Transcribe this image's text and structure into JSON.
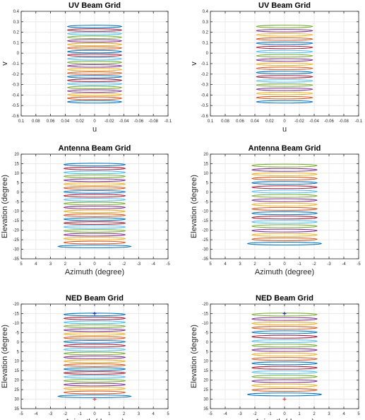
{
  "figure": {
    "colors": [
      "#0072BD",
      "#D95319",
      "#EDB120",
      "#7E2F8E",
      "#77AC30",
      "#4DBEEE",
      "#A2142F"
    ],
    "axis_color": "#262626",
    "grid_color": "#e6e6e6",
    "marker_colors": {
      "blue": "#1f1fcf",
      "red": "#e0302a"
    }
  },
  "chart_data": [
    {
      "id": "uv-left",
      "type": "line",
      "title": "UV Beam Grid",
      "xlabel": "u",
      "ylabel": "v",
      "xlim": [
        0.1,
        -0.1
      ],
      "ylim": [
        -0.6,
        0.4
      ],
      "xticks": [
        0.1,
        0.08,
        0.06,
        0.04,
        0.02,
        0,
        -0.02,
        -0.04,
        -0.06,
        -0.08,
        -0.1
      ],
      "xticklabels": [
        "0.1",
        "0.08",
        "0.06",
        "0.04",
        "0.02",
        "0",
        "-0.02",
        "-0.04",
        "-0.06",
        "-0.08",
        "-0.1"
      ],
      "yticks": [
        -0.6,
        -0.5,
        -0.4,
        -0.3,
        -0.2,
        -0.1,
        0,
        0.1,
        0.2,
        0.3,
        0.4
      ],
      "yticklabels": [
        "-0.6",
        "-0.5",
        "-0.4",
        "-0.3",
        "-0.2",
        "-0.1",
        "0",
        "0.1",
        "0.2",
        "0.3",
        "0.4"
      ],
      "grid": true,
      "ellipses": {
        "cx": 0,
        "rx": 0.037,
        "ry": 0.012,
        "count": 22,
        "cy_first": -0.465,
        "cy_last": 0.255
      },
      "markers": []
    },
    {
      "id": "uv-right",
      "type": "line",
      "title": "UV Beam Grid",
      "xlabel": "u",
      "ylabel": "v",
      "xlim": [
        0.1,
        -0.1
      ],
      "ylim": [
        -0.6,
        0.4
      ],
      "xticks": [
        0.1,
        0.08,
        0.06,
        0.04,
        0.02,
        0,
        -0.02,
        -0.04,
        -0.06,
        -0.08,
        -0.1
      ],
      "xticklabels": [
        "0.1",
        "0.08",
        "0.06",
        "0.04",
        "0.02",
        "0",
        "-0.02",
        "-0.04",
        "-0.06",
        "-0.08",
        "-0.1"
      ],
      "yticks": [
        -0.6,
        -0.5,
        -0.4,
        -0.3,
        -0.2,
        -0.1,
        0,
        0.1,
        0.2,
        0.3,
        0.4
      ],
      "yticklabels": [
        "-0.6",
        "-0.5",
        "-0.4",
        "-0.3",
        "-0.2",
        "-0.1",
        "0",
        "0.1",
        "0.2",
        "0.3",
        "0.4"
      ],
      "grid": true,
      "ellipses": {
        "cx": 0,
        "rx": 0.038,
        "ry": 0.012,
        "count": 19,
        "cy_first": -0.465,
        "cy_last": 0.255
      },
      "markers": []
    },
    {
      "id": "antenna-left",
      "type": "line",
      "title": "Antenna Beam Grid",
      "xlabel": "Azimuth (degree)",
      "ylabel": "Elevation (degree)",
      "xlim": [
        5,
        -5
      ],
      "ylim": [
        -35,
        20
      ],
      "xticks": [
        5,
        4,
        3,
        2,
        1,
        0,
        -1,
        -2,
        -3,
        -4,
        -5
      ],
      "xticklabels": [
        "5",
        "4",
        "3",
        "2",
        "1",
        "0",
        "-1",
        "-2",
        "-3",
        "-4",
        "-5"
      ],
      "yticks": [
        -35,
        -30,
        -25,
        -20,
        -15,
        -10,
        -5,
        0,
        5,
        10,
        15,
        20
      ],
      "yticklabels": [
        "-35",
        "-30",
        "-25",
        "-20",
        "-15",
        "-10",
        "-5",
        "0",
        "5",
        "10",
        "15",
        "20"
      ],
      "grid": true,
      "ellipses": {
        "cx": 0,
        "rx": 2.1,
        "ry": 0.7,
        "count": 22,
        "cy_first": -28.5,
        "cy_last": 14.5,
        "rx_bottom": 2.5
      },
      "markers": []
    },
    {
      "id": "antenna-right",
      "type": "line",
      "title": "Antenna Beam Grid",
      "xlabel": "Azimuth (degree)",
      "ylabel": "Elevation (degree)",
      "xlim": [
        5,
        -5
      ],
      "ylim": [
        -35,
        20
      ],
      "xticks": [
        5,
        4,
        3,
        2,
        1,
        0,
        -1,
        -2,
        -3,
        -4,
        -5
      ],
      "xticklabels": [
        "5",
        "4",
        "3",
        "2",
        "1",
        "0",
        "-1",
        "-2",
        "-3",
        "-4",
        "-5"
      ],
      "yticks": [
        -35,
        -30,
        -25,
        -20,
        -15,
        -10,
        -5,
        0,
        5,
        10,
        15,
        20
      ],
      "yticklabels": [
        "-35",
        "-30",
        "-25",
        "-20",
        "-15",
        "-10",
        "-5",
        "0",
        "5",
        "10",
        "15",
        "20"
      ],
      "grid": true,
      "ellipses": {
        "cx": 0,
        "rx": 2.2,
        "ry": 0.75,
        "count": 19,
        "cy_first": -27,
        "cy_last": 14,
        "rx_bottom": 2.5
      },
      "markers": []
    },
    {
      "id": "ned-left",
      "type": "line",
      "title": "NED Beam Grid",
      "xlabel": "Azimuth (degree)",
      "ylabel": "Elevation (degree)",
      "xlim": [
        -5,
        5
      ],
      "ylim": [
        35,
        -20
      ],
      "xticks": [
        -5,
        -4,
        -3,
        -2,
        -1,
        0,
        1,
        2,
        3,
        4,
        5
      ],
      "xticklabels": [
        "-5",
        "-4",
        "-3",
        "-2",
        "-1",
        "0",
        "1",
        "2",
        "3",
        "4",
        "5"
      ],
      "yticks": [
        35,
        30,
        25,
        20,
        15,
        10,
        5,
        0,
        -5,
        -10,
        -15,
        -20
      ],
      "yticklabels": [
        "35",
        "30",
        "25",
        "20",
        "15",
        "10",
        "5",
        "0",
        "-5",
        "-10",
        "-15",
        "-20"
      ],
      "grid": true,
      "ellipses": {
        "cx": 0,
        "rx": 2.1,
        "ry": 0.7,
        "count": 22,
        "cy_first": 28.5,
        "cy_last": -14.5,
        "rx_bottom": 2.5
      },
      "markers": [
        {
          "x": 0,
          "y": -15,
          "color": "blue"
        },
        {
          "x": 0,
          "y": 30,
          "color": "red"
        }
      ]
    },
    {
      "id": "ned-right",
      "type": "line",
      "title": "NED Beam Grid",
      "xlabel": "Azimuth (degree)",
      "ylabel": "Elevation (degree)",
      "xlim": [
        -5,
        5
      ],
      "ylim": [
        35,
        -20
      ],
      "xticks": [
        -5,
        -4,
        -3,
        -2,
        -1,
        0,
        1,
        2,
        3,
        4,
        5
      ],
      "xticklabels": [
        "-5",
        "-4",
        "-3",
        "-2",
        "-1",
        "0",
        "1",
        "2",
        "3",
        "4",
        "5"
      ],
      "yticks": [
        35,
        30,
        25,
        20,
        15,
        10,
        5,
        0,
        -5,
        -10,
        -15,
        -20
      ],
      "yticklabels": [
        "35",
        "30",
        "25",
        "20",
        "15",
        "10",
        "5",
        "0",
        "-5",
        "-10",
        "-15",
        "-20"
      ],
      "grid": true,
      "ellipses": {
        "cx": 0,
        "rx": 2.2,
        "ry": 0.75,
        "count": 19,
        "cy_first": 27.5,
        "cy_last": -14.5,
        "rx_bottom": 2.5
      },
      "markers": [
        {
          "x": 0,
          "y": -15,
          "color": "blue"
        },
        {
          "x": 0,
          "y": 30,
          "color": "red"
        }
      ]
    }
  ]
}
